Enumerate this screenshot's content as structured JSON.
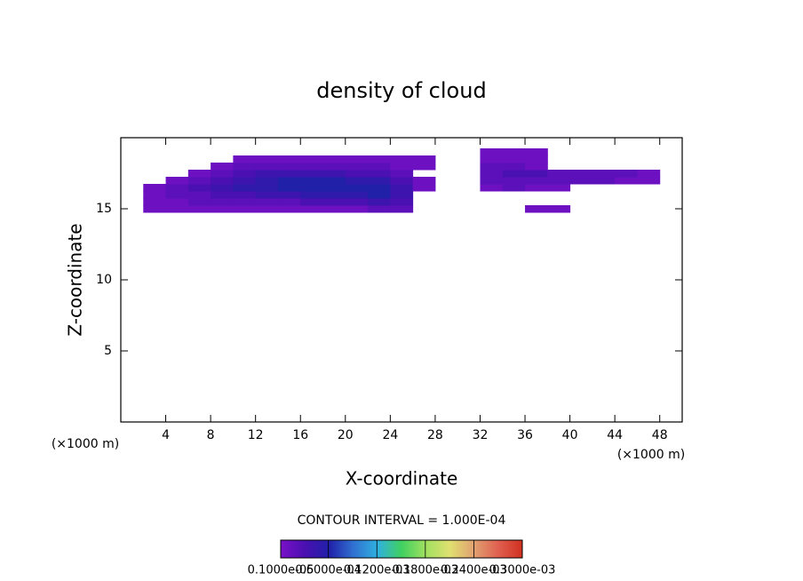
{
  "chart_data": {
    "type": "contour",
    "title": "density of cloud",
    "xlabel": "X-coordinate",
    "ylabel": "Z-coordinate",
    "x_unit_labels": [
      "(×1000 m)",
      "(×1000 m)"
    ],
    "note": "CONTOUR INTERVAL = 1.000E-04",
    "xlim": [
      0,
      50
    ],
    "ylim": [
      0,
      20
    ],
    "xticks": [
      4,
      8,
      12,
      16,
      20,
      24,
      28,
      32,
      36,
      40,
      44,
      48
    ],
    "yticks": [
      5,
      10,
      15
    ],
    "x": [
      3,
      5,
      7,
      9,
      11,
      13,
      15,
      17,
      19,
      21,
      23,
      25,
      27,
      29,
      31,
      33,
      35,
      37,
      39,
      41,
      43,
      45,
      47
    ],
    "y": [
      15,
      15.5,
      16,
      16.5,
      17,
      17.5,
      18,
      18.5,
      19
    ],
    "z": [
      [
        1e-05,
        1e-05,
        1e-05,
        1e-05,
        1e-05,
        1e-05,
        1e-05,
        1e-05,
        1e-05,
        1e-05,
        2e-05,
        2e-05,
        null,
        null,
        null,
        null,
        null,
        1e-05,
        1e-05,
        null,
        null,
        null,
        null
      ],
      [
        1e-05,
        1e-05,
        2e-05,
        2e-05,
        2e-05,
        2e-05,
        2e-05,
        3e-05,
        3e-05,
        3e-05,
        4e-05,
        3e-05,
        null,
        null,
        null,
        null,
        null,
        null,
        null,
        null,
        null,
        null,
        null
      ],
      [
        1e-05,
        2e-05,
        2e-05,
        3e-05,
        3e-05,
        4e-05,
        4e-05,
        5e-05,
        5e-05,
        5e-05,
        6e-05,
        4e-05,
        null,
        null,
        null,
        null,
        null,
        null,
        null,
        null,
        null,
        null,
        null
      ],
      [
        1e-05,
        2e-05,
        3e-05,
        4e-05,
        5e-05,
        5e-05,
        6e-05,
        6e-05,
        6e-05,
        6e-05,
        6e-05,
        4e-05,
        1e-05,
        null,
        null,
        1e-05,
        2e-05,
        1e-05,
        1e-05,
        null,
        null,
        null,
        null
      ],
      [
        null,
        1e-05,
        2e-05,
        3e-05,
        4e-05,
        5e-05,
        6e-05,
        6e-05,
        6e-05,
        5e-05,
        5e-05,
        3e-05,
        1e-05,
        null,
        null,
        2e-05,
        2e-05,
        2e-05,
        2e-05,
        2e-05,
        2e-05,
        1e-05,
        1e-05
      ],
      [
        null,
        null,
        1e-05,
        2e-05,
        3e-05,
        4e-05,
        4e-05,
        4e-05,
        4e-05,
        3e-05,
        3e-05,
        2e-05,
        null,
        null,
        null,
        2e-05,
        3e-05,
        3e-05,
        2e-05,
        2e-05,
        2e-05,
        2e-05,
        1e-05
      ],
      [
        null,
        null,
        null,
        1e-05,
        2e-05,
        2e-05,
        2e-05,
        2e-05,
        2e-05,
        2e-05,
        2e-05,
        1e-05,
        1e-05,
        null,
        null,
        2e-05,
        2e-05,
        1e-05,
        null,
        null,
        null,
        null,
        null
      ],
      [
        null,
        null,
        null,
        null,
        1e-05,
        1e-05,
        1e-05,
        1e-05,
        1e-05,
        1e-05,
        1e-05,
        1e-05,
        1e-05,
        null,
        null,
        1e-05,
        1e-05,
        1e-05,
        null,
        null,
        null,
        null,
        null
      ],
      [
        null,
        null,
        null,
        null,
        null,
        null,
        null,
        null,
        null,
        null,
        null,
        null,
        null,
        null,
        null,
        1e-05,
        1e-05,
        1e-05,
        null,
        null,
        null,
        null,
        null
      ]
    ],
    "colormap": [
      "#7a10c8",
      "#4a10b0",
      "#2020a8",
      "#3070d0",
      "#30b0e0",
      "#40d060",
      "#a0e060",
      "#e0e070",
      "#e0a070",
      "#e06050",
      "#d03020"
    ],
    "colorbar_lim": [
      1e-06,
      0.0003
    ],
    "colorbar_ticks": [
      {
        "value": 1e-06,
        "label": "0.1000e-05"
      },
      {
        "value": 6e-05,
        "label": "0.6000e-04"
      },
      {
        "value": 0.00012,
        "label": "0.1200e-03"
      },
      {
        "value": 0.00018,
        "label": "0.1800e-03"
      },
      {
        "value": 0.00024,
        "label": "0.2400e-03"
      },
      {
        "value": 0.0003,
        "label": "0.3000e-03"
      }
    ]
  }
}
